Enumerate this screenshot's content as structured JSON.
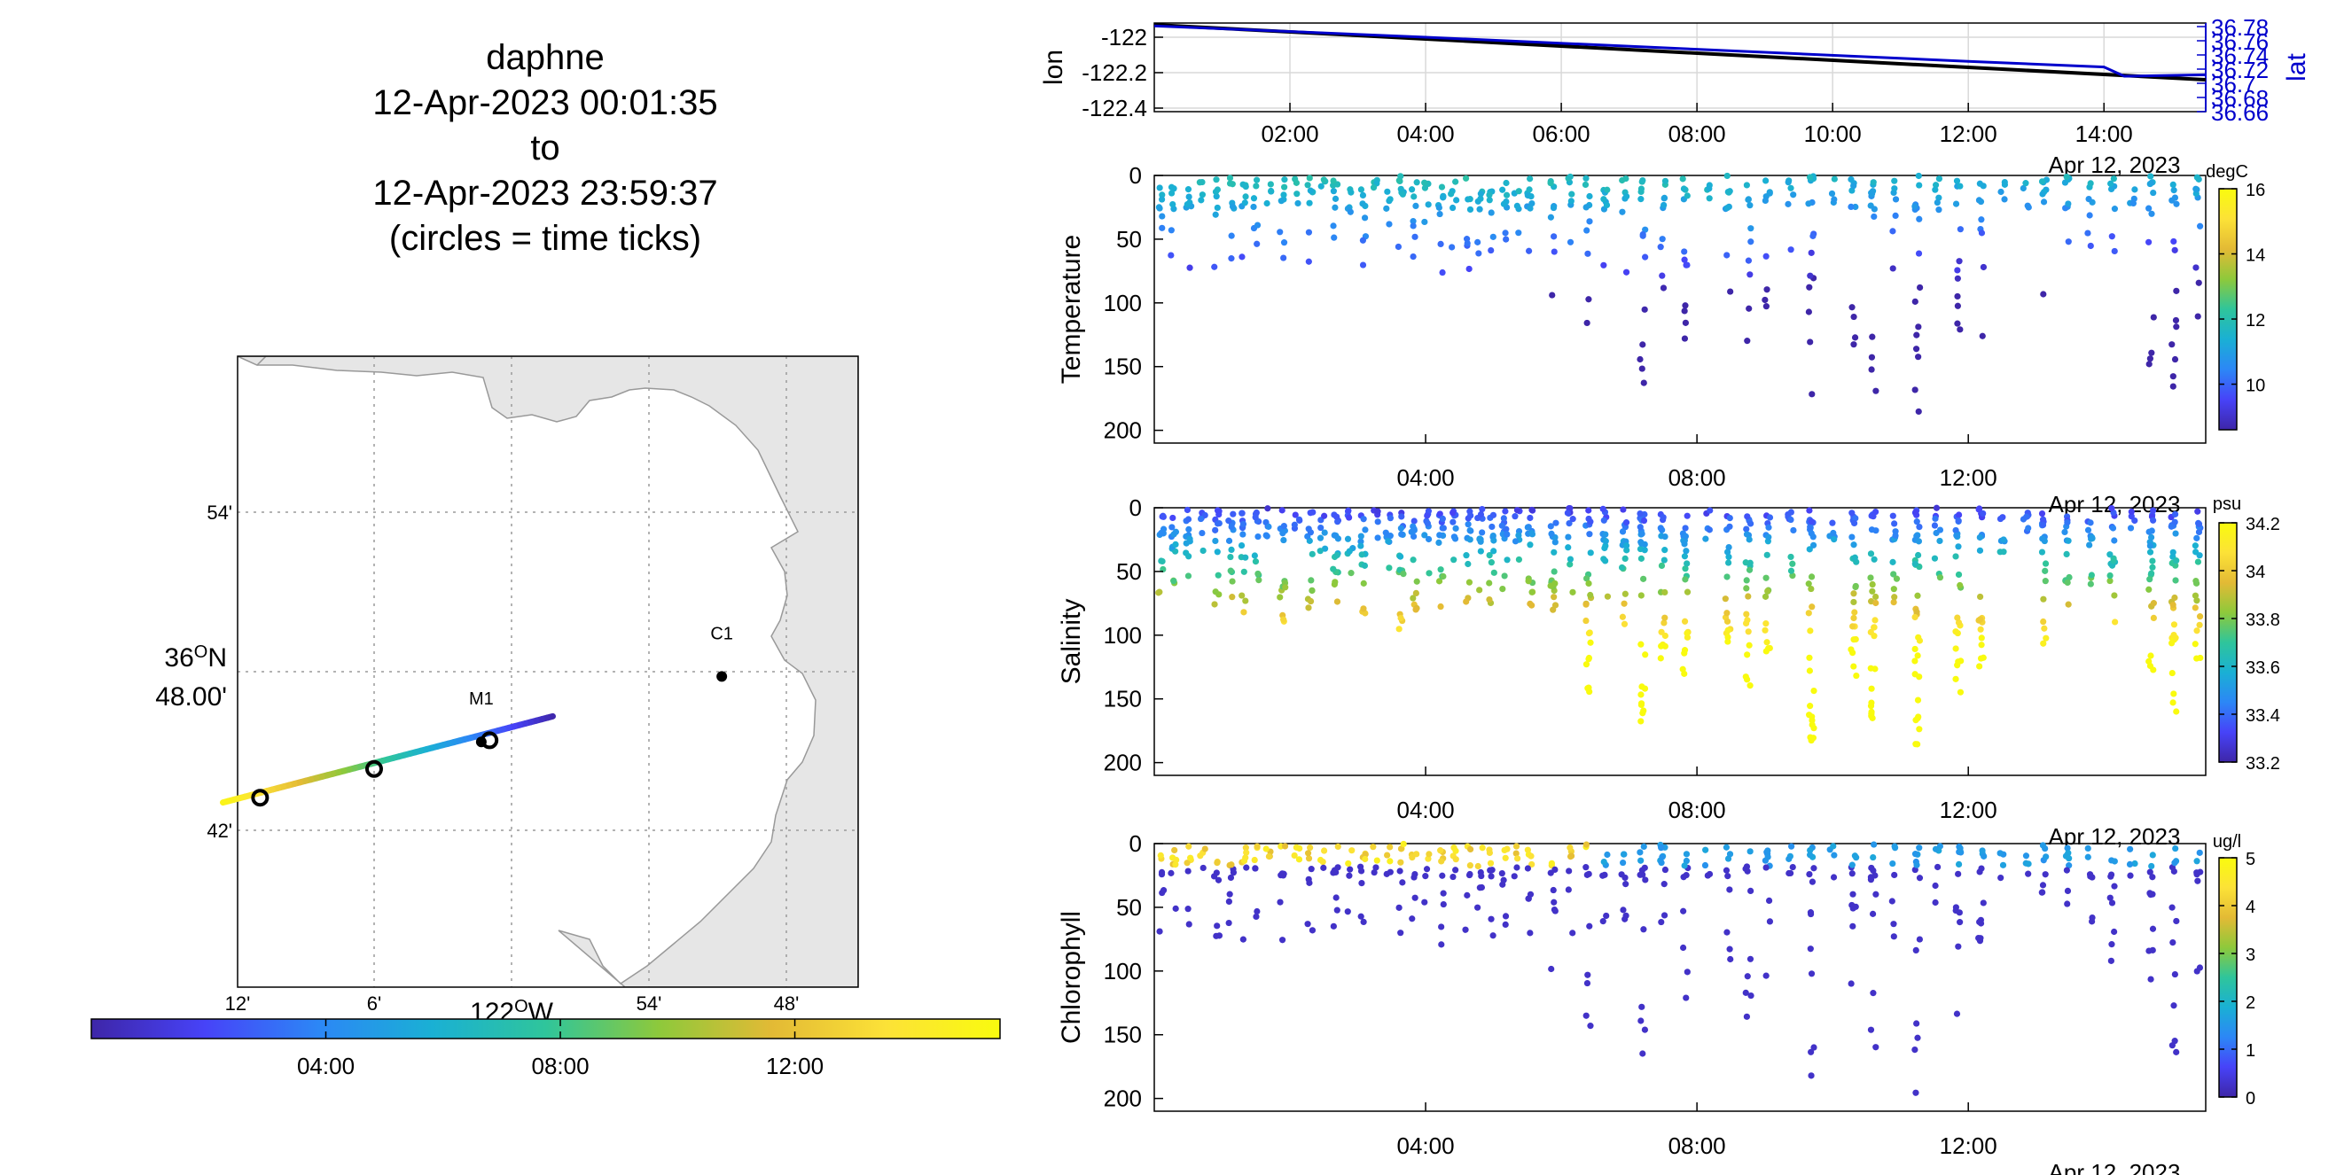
{
  "title": {
    "lines": [
      "daphne",
      "12-Apr-2023 00:01:35",
      "to",
      "12-Apr-2023 23:59:37",
      "(circles = time ticks)"
    ]
  },
  "colormap": [
    "#3e26a8",
    "#4743f8",
    "#2c87f6",
    "#1ab0d4",
    "#2fc59b",
    "#8ec93b",
    "#e3ba35",
    "#fce237",
    "#f9fb0e"
  ],
  "chart_data": [
    {
      "type": "map",
      "name": "track-map",
      "lat_ticks": [
        "54'",
        "36°N 48.00'",
        "42'"
      ],
      "lon_ticks": [
        "12'",
        "6'",
        "122°W",
        "54'",
        "48'"
      ],
      "xlabel": "122°W",
      "stations": [
        {
          "label": "C1",
          "lon": -121.847,
          "lat": 36.797
        },
        {
          "label": "M1",
          "lon": -122.022,
          "lat": 36.756
        }
      ],
      "track": {
        "start": {
          "lon": -122.21,
          "lat": 36.718
        },
        "end": {
          "lon": -121.97,
          "lat": 36.772
        }
      },
      "time_ticks": [
        {
          "lon": -122.183,
          "lat": 36.721
        },
        {
          "lon": -122.1,
          "lat": 36.739
        },
        {
          "lon": -122.016,
          "lat": 36.757
        }
      ],
      "colorbar": {
        "ticks": [
          "04:00",
          "08:00",
          "12:00"
        ],
        "range_hours": [
          0,
          15.5
        ]
      }
    },
    {
      "type": "line",
      "name": "lon-lat-panel",
      "ylabel": "lon",
      "ylabel_right": "lat",
      "yticks": [
        "-122",
        "-122.2",
        "-122.4"
      ],
      "yticks_right": [
        "36.78",
        "36.76",
        "36.74",
        "36.72",
        "36.7",
        "36.68",
        "36.66"
      ],
      "xticks": [
        "02:00",
        "04:00",
        "06:00",
        "08:00",
        "10:00",
        "12:00",
        "14:00"
      ],
      "date_label": "Apr 12, 2023",
      "xlim_hours": [
        0,
        15.5
      ],
      "series": [
        {
          "color": "#000000",
          "x": [
            0,
            4,
            8,
            12,
            15.5
          ],
          "y": [
            -121.93,
            -122.01,
            -122.09,
            -122.17,
            -122.24
          ]
        },
        {
          "color": "#0000cc",
          "x": [
            0,
            4,
            8,
            12,
            14,
            14.3,
            15.5
          ],
          "y": [
            36.781,
            36.765,
            36.748,
            36.731,
            36.723,
            36.71,
            36.712
          ]
        }
      ]
    },
    {
      "type": "scatter",
      "name": "temperature-panel",
      "ylabel": "Temperature",
      "units": "degC",
      "yticks": [
        "0",
        "50",
        "100",
        "150",
        "200"
      ],
      "ylim": [
        0,
        210
      ],
      "xticks": [
        "04:00",
        "08:00",
        "12:00"
      ],
      "date_label": "Apr 12, 2023",
      "cbar_ticks": [
        "16",
        "14",
        "12",
        "10"
      ],
      "clim": [
        8.6,
        16
      ]
    },
    {
      "type": "scatter",
      "name": "salinity-panel",
      "ylabel": "Salinity",
      "units": "psu",
      "yticks": [
        "0",
        "50",
        "100",
        "150",
        "200"
      ],
      "ylim": [
        0,
        210
      ],
      "xticks": [
        "04:00",
        "08:00",
        "12:00"
      ],
      "date_label": "Apr 12, 2023",
      "cbar_ticks": [
        "34.2",
        "34",
        "33.8",
        "33.6",
        "33.4",
        "33.2"
      ],
      "clim": [
        33.2,
        34.2
      ]
    },
    {
      "type": "scatter",
      "name": "chlorophyll-panel",
      "ylabel": "Chlorophyll",
      "units": "ug/l",
      "yticks": [
        "0",
        "50",
        "100",
        "150",
        "200"
      ],
      "ylim": [
        0,
        210
      ],
      "xticks": [
        "04:00",
        "08:00",
        "12:00"
      ],
      "date_label": "Apr 12, 2023",
      "cbar_ticks": [
        "5",
        "4",
        "3",
        "2",
        "1",
        "0"
      ],
      "clim": [
        0,
        5
      ]
    }
  ]
}
